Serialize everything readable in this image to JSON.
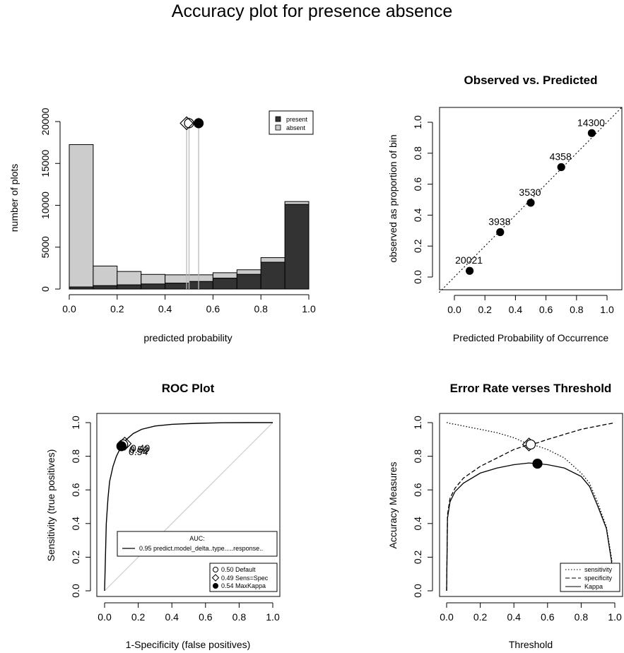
{
  "title": "Accuracy plot for presence absence",
  "chart_data": [
    {
      "type": "bar",
      "title": "",
      "xlabel": "predicted probability",
      "ylabel": "number of plots",
      "xlim": [
        0,
        1
      ],
      "ylim": [
        0,
        20000
      ],
      "x_ticks": [
        "0.0",
        "0.2",
        "0.4",
        "0.6",
        "0.8",
        "1.0"
      ],
      "y_ticks": [
        "0",
        "5000",
        "10000",
        "15000",
        "20000"
      ],
      "bins": [
        [
          0,
          0.1
        ],
        [
          0.1,
          0.2
        ],
        [
          0.2,
          0.3
        ],
        [
          0.3,
          0.4
        ],
        [
          0.4,
          0.5
        ],
        [
          0.5,
          0.6
        ],
        [
          0.6,
          0.7
        ],
        [
          0.7,
          0.8
        ],
        [
          0.8,
          0.9
        ],
        [
          0.9,
          1.0
        ]
      ],
      "series": [
        {
          "name": "present",
          "color": "#333333",
          "values": [
            250,
            400,
            500,
            600,
            700,
            900,
            1300,
            1750,
            3200,
            10100
          ]
        },
        {
          "name": "absent",
          "color": "#cccccc",
          "values": [
            17000,
            2350,
            1600,
            1150,
            1000,
            800,
            650,
            550,
            550,
            350
          ]
        }
      ],
      "thresholds": [
        {
          "name": "Default",
          "value": 0.5,
          "marker": "open-circle"
        },
        {
          "name": "Sens=Spec",
          "value": 0.49,
          "marker": "open-diamond"
        },
        {
          "name": "MaxKappa",
          "value": 0.54,
          "marker": "filled-circle"
        }
      ],
      "threshold_marker_y": 19800,
      "legend": "top-right"
    },
    {
      "type": "scatter",
      "title": "Observed vs. Predicted",
      "xlabel": "Predicted Probability of Occurrence",
      "ylabel": "observed as proportion of bin",
      "xlim": [
        -0.1,
        1.1
      ],
      "ylim": [
        -0.07,
        1.1
      ],
      "x_ticks": [
        "0.0",
        "0.2",
        "0.4",
        "0.6",
        "0.8",
        "1.0"
      ],
      "y_ticks": [
        "0.0",
        "0.2",
        "0.4",
        "0.6",
        "0.8",
        "1.0"
      ],
      "points": [
        {
          "x": 0.1,
          "y": 0.04,
          "label": "20021"
        },
        {
          "x": 0.3,
          "y": 0.29,
          "label": "3938"
        },
        {
          "x": 0.5,
          "y": 0.48,
          "label": "3530"
        },
        {
          "x": 0.7,
          "y": 0.71,
          "label": "4358"
        },
        {
          "x": 0.9,
          "y": 0.93,
          "label": "14300"
        }
      ],
      "reference_line": "y = x (dotted)"
    },
    {
      "type": "line",
      "title": "ROC Plot",
      "xlabel": "1-Specificity (false positives)",
      "ylabel": "Sensitivity (true positives)",
      "xlim": [
        0,
        1
      ],
      "ylim": [
        0,
        1
      ],
      "x_ticks": [
        "0.0",
        "0.2",
        "0.4",
        "0.6",
        "0.8",
        "1.0"
      ],
      "y_ticks": [
        "0.0",
        "0.2",
        "0.4",
        "0.6",
        "0.8",
        "1.0"
      ],
      "roc_curve": {
        "x": [
          0,
          0.005,
          0.01,
          0.02,
          0.03,
          0.05,
          0.07,
          0.1,
          0.13,
          0.17,
          0.22,
          0.3,
          0.4,
          0.55,
          0.7,
          0.85,
          1.0
        ],
        "y": [
          0,
          0.2,
          0.4,
          0.55,
          0.65,
          0.74,
          0.8,
          0.86,
          0.9,
          0.935,
          0.96,
          0.98,
          0.99,
          0.996,
          0.999,
          1.0,
          1.0
        ]
      },
      "diagonal": "y = x (grey)",
      "thresholds": [
        {
          "name": "Default",
          "x": 0.11,
          "y": 0.87,
          "marker": "open-circle"
        },
        {
          "name": "Sens=Spec",
          "x": 0.12,
          "y": 0.875,
          "marker": "open-diamond"
        },
        {
          "name": "MaxKappa",
          "x": 0.1,
          "y": 0.86,
          "marker": "filled-circle"
        }
      ],
      "point_labels": [
        "0.50",
        "0.49",
        "0.54"
      ],
      "auc": {
        "heading": "AUC:",
        "entry": "0.95 predict.model_delta..type.....response.."
      },
      "threshold_legend": [
        "0.50 Default",
        "0.49 Sens=Spec",
        "0.54 MaxKappa"
      ]
    },
    {
      "type": "line",
      "title": "Error Rate verses Threshold",
      "xlabel": "Threshold",
      "ylabel": "Accuracy Measures",
      "xlim": [
        0,
        1
      ],
      "ylim": [
        0,
        1
      ],
      "x_ticks": [
        "0.0",
        "0.2",
        "0.4",
        "0.6",
        "0.8",
        "1.0"
      ],
      "y_ticks": [
        "0.0",
        "0.2",
        "0.4",
        "0.6",
        "0.8",
        "1.0"
      ],
      "x": [
        0,
        0.005,
        0.02,
        0.05,
        0.1,
        0.2,
        0.3,
        0.4,
        0.49,
        0.54,
        0.6,
        0.7,
        0.8,
        0.85,
        0.9,
        0.95,
        0.98,
        0.99,
        1.0
      ],
      "series": [
        {
          "name": "sensitivity",
          "style": "dotted",
          "values": [
            1.0,
            1.0,
            0.995,
            0.99,
            0.98,
            0.96,
            0.94,
            0.91,
            0.87,
            0.86,
            0.84,
            0.79,
            0.7,
            0.64,
            0.52,
            0.38,
            0.2,
            0.1,
            0
          ]
        },
        {
          "name": "specificity",
          "style": "dashed",
          "values": [
            0.0,
            0.45,
            0.55,
            0.61,
            0.67,
            0.74,
            0.79,
            0.84,
            0.87,
            0.88,
            0.9,
            0.93,
            0.96,
            0.97,
            0.98,
            0.99,
            0.995,
            0.998,
            1.0
          ]
        },
        {
          "name": "Kappa",
          "style": "solid",
          "values": [
            0.0,
            0.43,
            0.53,
            0.59,
            0.64,
            0.7,
            0.73,
            0.75,
            0.76,
            0.756,
            0.75,
            0.73,
            0.68,
            0.62,
            0.5,
            0.37,
            0.18,
            0.08,
            0
          ]
        }
      ],
      "markers": [
        {
          "name": "Sens=Spec",
          "x": 0.49,
          "y": 0.87,
          "marker": "open-diamond"
        },
        {
          "name": "Default",
          "x": 0.5,
          "y": 0.87,
          "marker": "open-circle"
        },
        {
          "name": "MaxKappa",
          "x": 0.54,
          "y": 0.756,
          "marker": "filled-circle"
        }
      ],
      "legend": "bottom-right"
    }
  ]
}
